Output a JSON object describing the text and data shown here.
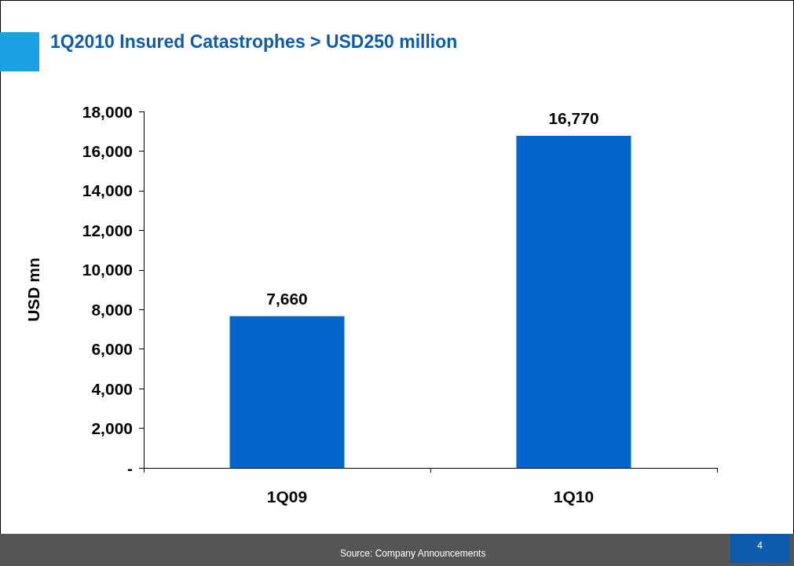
{
  "chart_data": {
    "type": "bar",
    "title": "1Q2010 Insured Catastrophes > USD250 million",
    "ylabel": "USD mn",
    "categories": [
      "1Q09",
      "1Q10"
    ],
    "values": [
      7660,
      16770
    ],
    "color": "#0066cc",
    "ylim": [
      0,
      18000
    ],
    "yticks": [
      {
        "value": 0,
        "label": "-"
      },
      {
        "value": 2000,
        "label": "2,000"
      },
      {
        "value": 4000,
        "label": "4,000"
      },
      {
        "value": 6000,
        "label": "6,000"
      },
      {
        "value": 8000,
        "label": "8,000"
      },
      {
        "value": 10000,
        "label": "10,000"
      },
      {
        "value": 12000,
        "label": "12,000"
      },
      {
        "value": 14000,
        "label": "14,000"
      },
      {
        "value": 16000,
        "label": "16,000"
      },
      {
        "value": 18000,
        "label": "18,000"
      }
    ],
    "value_labels": [
      "7,660",
      "16,770"
    ],
    "annotations": [
      "Source: Company Announcements",
      "4"
    ]
  }
}
